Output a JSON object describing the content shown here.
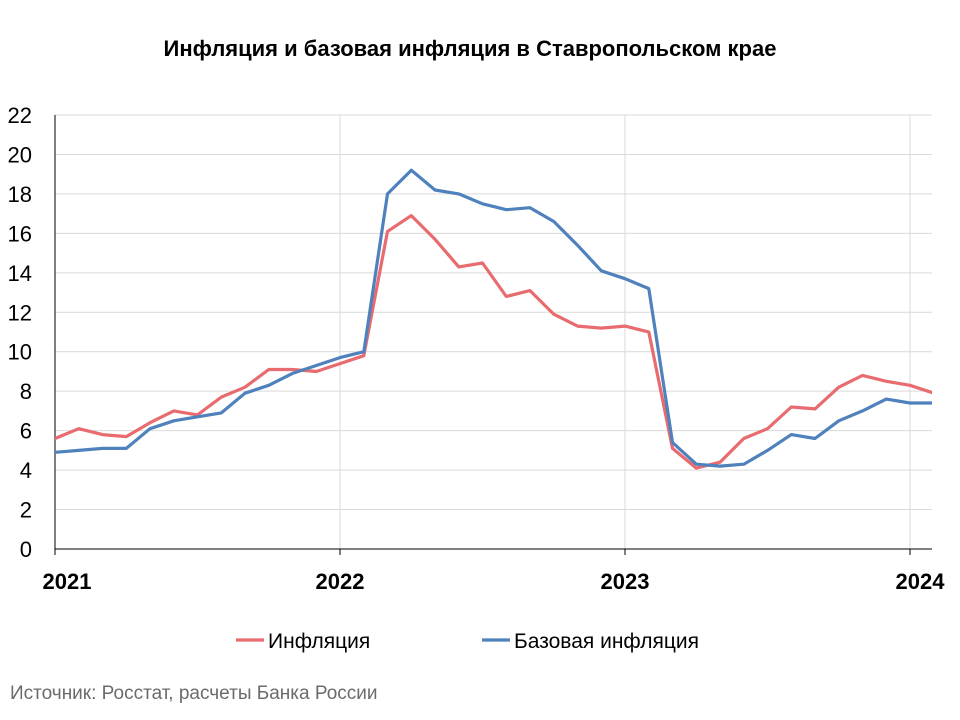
{
  "chart_data": {
    "type": "line",
    "title": "Инфляция и базовая инфляция в Ставропольском крае",
    "xlabel": "",
    "ylabel": "",
    "x_ticks": [
      "2021",
      "2022",
      "2023",
      "2024"
    ],
    "y_ticks": [
      "0",
      "2",
      "4",
      "6",
      "8",
      "10",
      "12",
      "14",
      "16",
      "18",
      "20",
      "22"
    ],
    "ylim": [
      0,
      22
    ],
    "xlim": [
      "2021-01",
      "2024-02"
    ],
    "grid": true,
    "legend_position": "bottom",
    "x": [
      "2021-01",
      "2021-02",
      "2021-03",
      "2021-04",
      "2021-05",
      "2021-06",
      "2021-07",
      "2021-08",
      "2021-09",
      "2021-10",
      "2021-11",
      "2021-12",
      "2022-01",
      "2022-02",
      "2022-03",
      "2022-04",
      "2022-05",
      "2022-06",
      "2022-07",
      "2022-08",
      "2022-09",
      "2022-10",
      "2022-11",
      "2022-12",
      "2023-01",
      "2023-02",
      "2023-03",
      "2023-04",
      "2023-05",
      "2023-06",
      "2023-07",
      "2023-08",
      "2023-09",
      "2023-10",
      "2023-11",
      "2023-12",
      "2024-01",
      "2024-02"
    ],
    "series": [
      {
        "name": "Инфляция",
        "color": "#e86b6f",
        "values": [
          5.6,
          6.1,
          5.8,
          5.7,
          6.4,
          7.0,
          6.8,
          7.7,
          8.2,
          9.1,
          9.1,
          9.0,
          9.4,
          9.8,
          16.1,
          16.9,
          15.7,
          14.3,
          14.5,
          12.8,
          13.1,
          11.9,
          11.3,
          11.2,
          11.3,
          11.0,
          5.1,
          4.1,
          4.4,
          5.6,
          6.1,
          7.2,
          7.1,
          8.2,
          8.8,
          8.5,
          8.3,
          7.9
        ]
      },
      {
        "name": "Базовая инфляция",
        "color": "#4f81bd",
        "values": [
          4.9,
          5.0,
          5.1,
          5.1,
          6.1,
          6.5,
          6.7,
          6.9,
          7.9,
          8.3,
          8.9,
          9.3,
          9.7,
          10.0,
          18.0,
          19.2,
          18.2,
          18.0,
          17.5,
          17.2,
          17.3,
          16.6,
          15.4,
          14.1,
          13.7,
          13.2,
          5.4,
          4.3,
          4.2,
          4.3,
          5.0,
          5.8,
          5.6,
          6.5,
          7.0,
          7.6,
          7.4,
          7.4
        ]
      }
    ]
  },
  "source_note": "Источник: Росстат, расчеты Банка России"
}
